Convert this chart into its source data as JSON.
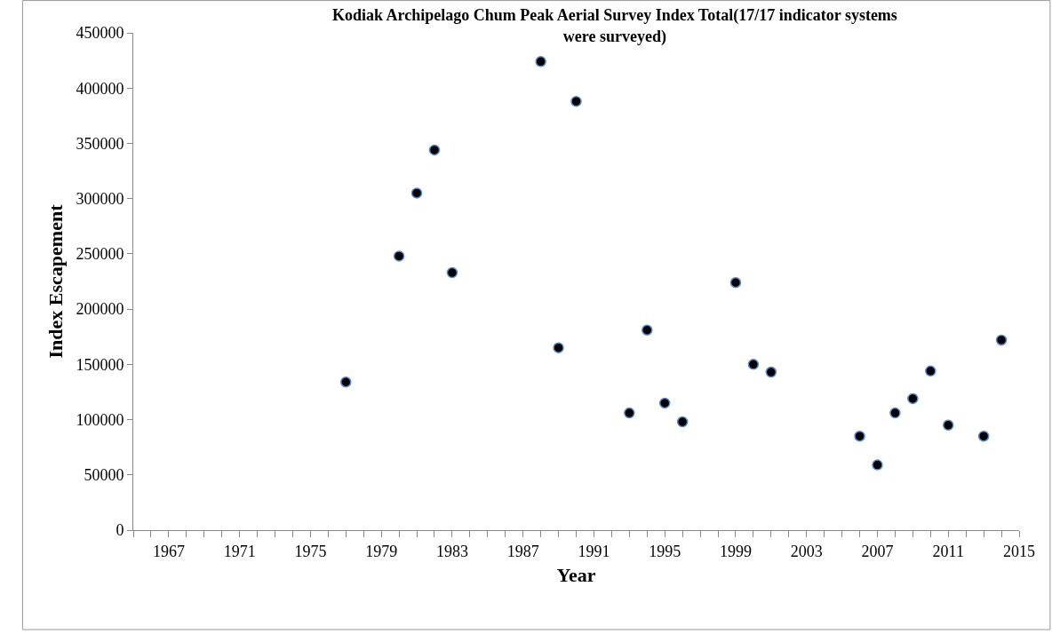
{
  "chart_data": {
    "type": "scatter",
    "title": "Kodiak Archipelago Chum Peak Aerial Survey Index Total(17/17 indicator systems were surveyed)",
    "xlabel": "Year",
    "ylabel": "Index Escapement",
    "x": [
      1977,
      1980,
      1981,
      1982,
      1983,
      1988,
      1989,
      1990,
      1993,
      1994,
      1995,
      1996,
      1999,
      2000,
      2001,
      2006,
      2007,
      2008,
      2009,
      2010,
      2011,
      2013,
      2014
    ],
    "series": [
      {
        "color": "#000000",
        "values": [
          134000,
          248000,
          305000,
          344000,
          233000,
          424000,
          165000,
          388000,
          106000,
          181000,
          115000,
          98000,
          224000,
          150000,
          143000,
          85000,
          59000,
          106000,
          119000,
          144000,
          95000,
          85000,
          172000
        ]
      }
    ],
    "xlim": [
      1965,
      2015
    ],
    "xticks": [
      1967,
      1971,
      1975,
      1979,
      1983,
      1987,
      1991,
      1995,
      1999,
      2003,
      2007,
      2011,
      2015
    ],
    "ylim": [
      0,
      450000
    ],
    "yticks": [
      0,
      50000,
      100000,
      150000,
      200000,
      250000,
      300000,
      350000,
      400000,
      450000
    ],
    "legend": false,
    "marker": "circle"
  }
}
